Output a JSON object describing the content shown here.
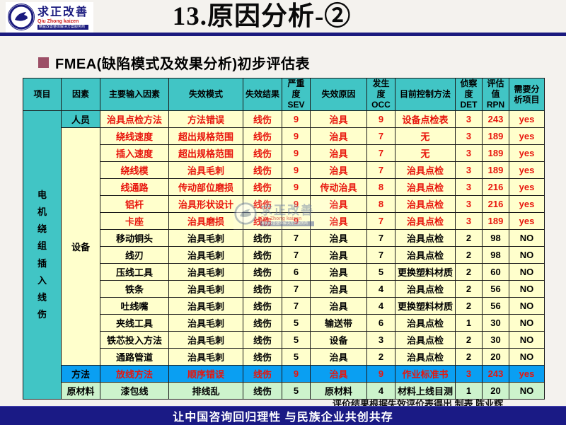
{
  "logo": {
    "title": "求正改善",
    "subtitle": "Qiu Zhong kaizen",
    "tagline": "精益改善整体解决方案服务商"
  },
  "page_title": "13.原因分析-②",
  "section_title": "FMEA(缺陷模式及效果分析)初步评估表",
  "table": {
    "project": "电机绕组插入线伤",
    "columns": [
      "项目",
      "因素",
      "主要输入因素",
      "失效模式",
      "失效结果",
      "严重度\nSEV",
      "失效原因",
      "发生度\nOCC",
      "目前控制方法",
      "侦察度\nDET",
      "评估值\nRPN",
      "需要分\n析项目"
    ],
    "factor_groups": [
      {
        "label": "人员",
        "rows": 1,
        "bg": "teal"
      },
      {
        "label": "设备",
        "rows": 14,
        "bg": "yellow"
      },
      {
        "label": "方法",
        "rows": 1,
        "bg": "blue"
      },
      {
        "label": "原材料",
        "rows": 1,
        "bg": "green"
      }
    ],
    "rows": [
      {
        "input": "治具点检方法",
        "mode": "方法错误",
        "result": "线伤",
        "sev": "9",
        "cause": "治具",
        "occ": "9",
        "control": "设备点检表",
        "det": "3",
        "rpn": "243",
        "need": "yes",
        "bg": "yellow",
        "text": "red"
      },
      {
        "input": "绕线速度",
        "mode": "超出规格范围",
        "result": "线伤",
        "sev": "9",
        "cause": "治具",
        "occ": "7",
        "control": "无",
        "det": "3",
        "rpn": "189",
        "need": "yes",
        "bg": "yellow",
        "text": "red"
      },
      {
        "input": "插入速度",
        "mode": "超出规格范围",
        "result": "线伤",
        "sev": "9",
        "cause": "治具",
        "occ": "7",
        "control": "无",
        "det": "3",
        "rpn": "189",
        "need": "yes",
        "bg": "yellow",
        "text": "red"
      },
      {
        "input": "绕线模",
        "mode": "治具毛刺",
        "result": "线伤",
        "sev": "9",
        "cause": "治具",
        "occ": "7",
        "control": "治具点检",
        "det": "3",
        "rpn": "189",
        "need": "yes",
        "bg": "yellow",
        "text": "red"
      },
      {
        "input": "线通路",
        "mode": "传动部位磨损",
        "result": "线伤",
        "sev": "9",
        "cause": "传动治具",
        "occ": "8",
        "control": "治具点检",
        "det": "3",
        "rpn": "216",
        "need": "yes",
        "bg": "yellow",
        "text": "red"
      },
      {
        "input": "铝杆",
        "mode": "治具形状设计",
        "result": "线伤",
        "sev": "9",
        "cause": "治具",
        "occ": "8",
        "control": "治具点检",
        "det": "3",
        "rpn": "216",
        "need": "yes",
        "bg": "yellow",
        "text": "red"
      },
      {
        "input": "卡座",
        "mode": "治具磨损",
        "result": "线伤",
        "sev": "9",
        "cause": "治具",
        "occ": "7",
        "control": "治具点检",
        "det": "3",
        "rpn": "189",
        "need": "yes",
        "bg": "yellow",
        "text": "red"
      },
      {
        "input": "移动铜头",
        "mode": "治具毛刺",
        "result": "线伤",
        "sev": "7",
        "cause": "治具",
        "occ": "7",
        "control": "治具点检",
        "det": "2",
        "rpn": "98",
        "need": "NO",
        "bg": "yellow",
        "text": "black"
      },
      {
        "input": "线刃",
        "mode": "治具毛刺",
        "result": "线伤",
        "sev": "7",
        "cause": "治具",
        "occ": "7",
        "control": "治具点检",
        "det": "2",
        "rpn": "98",
        "need": "NO",
        "bg": "yellow",
        "text": "black"
      },
      {
        "input": "压线工具",
        "mode": "治具毛刺",
        "result": "线伤",
        "sev": "6",
        "cause": "治具",
        "occ": "5",
        "control": "更换塑料材质",
        "det": "2",
        "rpn": "60",
        "need": "NO",
        "bg": "yellow",
        "text": "black"
      },
      {
        "input": "铁条",
        "mode": "治具毛刺",
        "result": "线伤",
        "sev": "7",
        "cause": "治具",
        "occ": "4",
        "control": "治具点检",
        "det": "2",
        "rpn": "56",
        "need": "NO",
        "bg": "yellow",
        "text": "black"
      },
      {
        "input": "吐线嘴",
        "mode": "治具毛刺",
        "result": "线伤",
        "sev": "7",
        "cause": "治具",
        "occ": "4",
        "control": "更换塑料材质",
        "det": "2",
        "rpn": "56",
        "need": "NO",
        "bg": "yellow",
        "text": "black"
      },
      {
        "input": "夹线工具",
        "mode": "治具毛刺",
        "result": "线伤",
        "sev": "5",
        "cause": "输送带",
        "occ": "6",
        "control": "治具点检",
        "det": "1",
        "rpn": "30",
        "need": "NO",
        "bg": "yellow",
        "text": "black"
      },
      {
        "input": "铁芯投入方法",
        "mode": "治具毛刺",
        "result": "线伤",
        "sev": "5",
        "cause": "设备",
        "occ": "3",
        "control": "治具点检",
        "det": "2",
        "rpn": "30",
        "need": "NO",
        "bg": "yellow",
        "text": "black"
      },
      {
        "input": "通路管道",
        "mode": "治具毛刺",
        "result": "线伤",
        "sev": "5",
        "cause": "治具",
        "occ": "2",
        "control": "治具点检",
        "det": "2",
        "rpn": "20",
        "need": "NO",
        "bg": "yellow",
        "text": "black"
      },
      {
        "input": "放线方法",
        "mode": "顺序错误",
        "result": "线伤",
        "sev": "9",
        "cause": "治具",
        "occ": "9",
        "control": "作业标准书",
        "det": "3",
        "rpn": "243",
        "need": "yes",
        "bg": "blue",
        "text": "red"
      },
      {
        "input": "漆包线",
        "mode": "排线乱",
        "result": "线伤",
        "sev": "5",
        "cause": "原材料",
        "occ": "4",
        "control": "材料上线目测",
        "det": "1",
        "rpn": "20",
        "need": "NO",
        "bg": "green",
        "text": "black"
      }
    ]
  },
  "footnote": "评价结果根据失效评价表得出 制表 陈业辉",
  "footer": "让中国咨询回归理性 与民族企业共创共存",
  "colors": {
    "header_teal": "#41c5c5",
    "row_yellow": "#ffffcc",
    "row_blue": "#0a9ff2",
    "row_green": "#ccf3cc",
    "highlight_red": "#e8150c",
    "navy": "#1a1a7e",
    "bullet_maroon": "#9c4f66"
  }
}
